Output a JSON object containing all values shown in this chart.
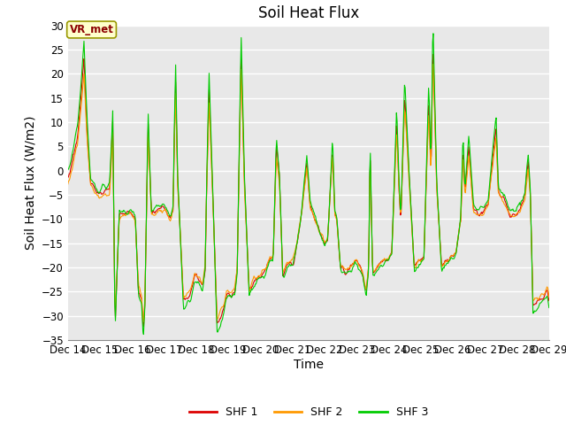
{
  "title": "Soil Heat Flux",
  "ylabel": "Soil Heat Flux (W/m2)",
  "xlabel": "Time",
  "ylim": [
    -35,
    30
  ],
  "yticks": [
    -35,
    -30,
    -25,
    -20,
    -15,
    -10,
    -5,
    0,
    5,
    10,
    15,
    20,
    25,
    30
  ],
  "colors": {
    "SHF 1": "#dd0000",
    "SHF 2": "#ff9900",
    "SHF 3": "#00cc00"
  },
  "legend_labels": [
    "SHF 1",
    "SHF 2",
    "SHF 3"
  ],
  "annotation_text": "VR_met",
  "annotation_color": "#8b0000",
  "annotation_bg": "#ffffcc",
  "annotation_border": "#999900",
  "n_points": 720,
  "x_start": 14,
  "x_end": 29,
  "xtick_positions": [
    14,
    15,
    16,
    17,
    18,
    19,
    20,
    21,
    22,
    23,
    24,
    25,
    26,
    27,
    28,
    29
  ],
  "xtick_labels": [
    "Dec 14",
    "Dec 15",
    "Dec 16",
    "Dec 17",
    "Dec 18",
    "Dec 19",
    "Dec 20",
    "Dec 21",
    "Dec 22",
    "Dec 23",
    "Dec 24",
    "Dec 25",
    "Dec 26",
    "Dec 27",
    "Dec 28",
    "Dec 29"
  ],
  "background_color": "#e8e8e8",
  "grid_color": "#ffffff",
  "title_fontsize": 12,
  "label_fontsize": 10,
  "tick_fontsize": 8.5
}
